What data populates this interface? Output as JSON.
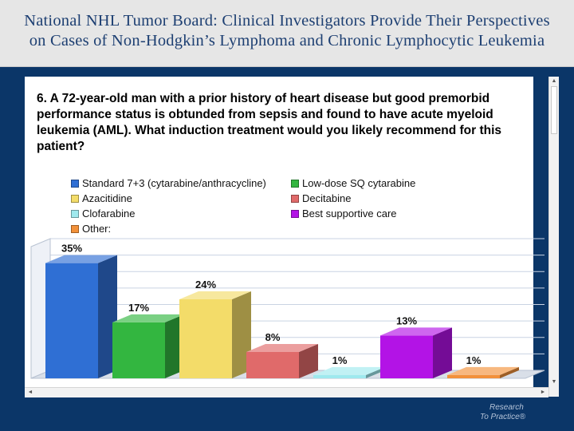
{
  "header": {
    "title_line1": "National NHL Tumor Board: Clinical Investigators Provide Their Perspectives",
    "title_line2": "on Cases of Non-Hodgkin’s Lymphoma and Chronic Lymphocytic Leukemia"
  },
  "question": "6. A 72-year-old man with a prior history of heart disease but good premorbid performance status is obtunded from sepsis and found to have acute myeloid leukemia (AML). What induction treatment would you likely recommend for this patient?",
  "chart_data": {
    "type": "bar",
    "title": "",
    "xlabel": "",
    "ylabel": "",
    "ylim": [
      0,
      40
    ],
    "grid": true,
    "legend_position": "top-left",
    "categories": [
      "Standard 7+3 (cytarabine/anthracycline)",
      "Low-dose SQ cytarabine",
      "Azacitidine",
      "Decitabine",
      "Clofarabine",
      "Best supportive care",
      "Other:"
    ],
    "values": [
      35,
      17,
      24,
      8,
      1,
      13,
      1
    ],
    "value_labels": [
      "35%",
      "17%",
      "24%",
      "8%",
      "1%",
      "13%",
      "1%"
    ],
    "colors": [
      "#2f6fd4",
      "#33b640",
      "#f3dc69",
      "#e06a6a",
      "#9fe9ee",
      "#b313e6",
      "#f2913a"
    ]
  },
  "logo": {
    "line1": "Research",
    "line2": "To Practice®"
  }
}
